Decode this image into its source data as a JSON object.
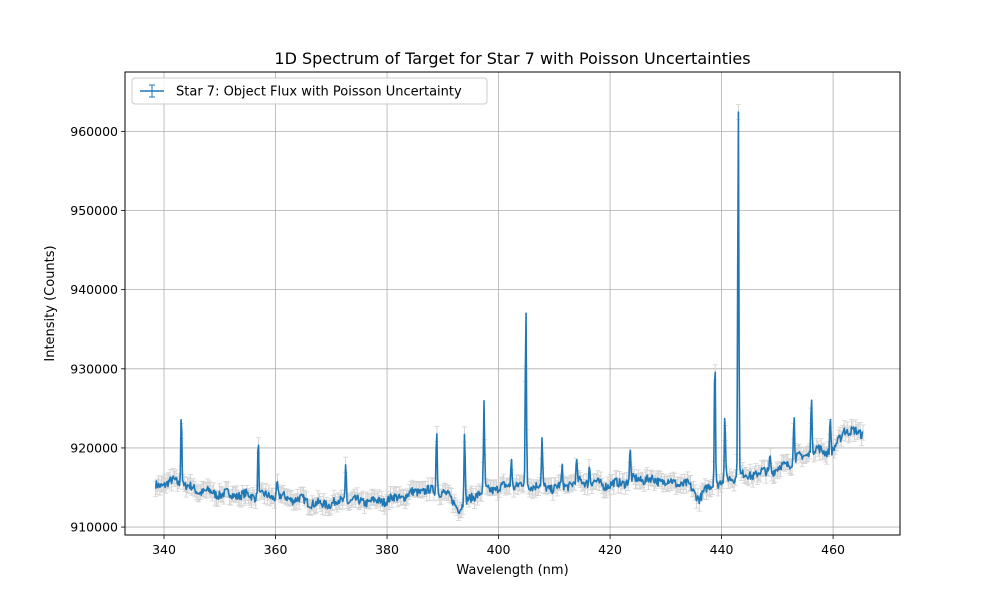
{
  "chart_data": {
    "type": "line",
    "title": "1D Spectrum of Target for Star 7 with Poisson Uncertainties",
    "xlabel": "Wavelength (nm)",
    "ylabel": "Intensity (Counts)",
    "xlim": [
      333,
      472
    ],
    "ylim": [
      909000,
      967500
    ],
    "xticks": [
      340,
      360,
      380,
      400,
      420,
      440,
      460
    ],
    "yticks": [
      910000,
      920000,
      930000,
      940000,
      950000,
      960000
    ],
    "grid": true,
    "legend_position": "top-left",
    "series": [
      {
        "name": "Star 7: Object Flux with Poisson Uncertainty",
        "color": "#1f77b4",
        "errorbar_color": "#d3d3d3",
        "baseline_nodes": [
          [
            338.5,
            915200
          ],
          [
            342,
            915800
          ],
          [
            346,
            914600
          ],
          [
            350,
            914200
          ],
          [
            355,
            914000
          ],
          [
            360,
            913900
          ],
          [
            365,
            913400
          ],
          [
            368,
            912800
          ],
          [
            372,
            913300
          ],
          [
            378,
            913200
          ],
          [
            382,
            913700
          ],
          [
            386,
            914600
          ],
          [
            390,
            914500
          ],
          [
            393,
            912400
          ],
          [
            396,
            914200
          ],
          [
            400,
            915000
          ],
          [
            405,
            915400
          ],
          [
            410,
            914900
          ],
          [
            415,
            915800
          ],
          [
            420,
            915300
          ],
          [
            425,
            916100
          ],
          [
            430,
            915800
          ],
          [
            434,
            915300
          ],
          [
            436,
            913700
          ],
          [
            438,
            915200
          ],
          [
            442,
            916300
          ],
          [
            446,
            916700
          ],
          [
            450,
            917300
          ],
          [
            454,
            918800
          ],
          [
            457,
            919800
          ],
          [
            460,
            919500
          ],
          [
            462,
            922200
          ],
          [
            465.5,
            921800
          ]
        ],
        "peaks": [
          [
            343.1,
            925200
          ],
          [
            356.9,
            921200
          ],
          [
            360.3,
            915800
          ],
          [
            372.6,
            918300
          ],
          [
            388.9,
            923000
          ],
          [
            393.9,
            922300
          ],
          [
            397.4,
            925600
          ],
          [
            402.3,
            919200
          ],
          [
            404.9,
            937800
          ],
          [
            407.8,
            921000
          ],
          [
            411.4,
            917400
          ],
          [
            414.0,
            918200
          ],
          [
            416.3,
            918000
          ],
          [
            423.6,
            919800
          ],
          [
            438.8,
            932800
          ],
          [
            440.6,
            924300
          ],
          [
            443.0,
            963900
          ],
          [
            448.7,
            919500
          ],
          [
            453.0,
            924400
          ],
          [
            456.1,
            926800
          ],
          [
            459.5,
            924100
          ],
          [
            461.9,
            922800
          ]
        ],
        "uncertainty": 960
      }
    ]
  }
}
